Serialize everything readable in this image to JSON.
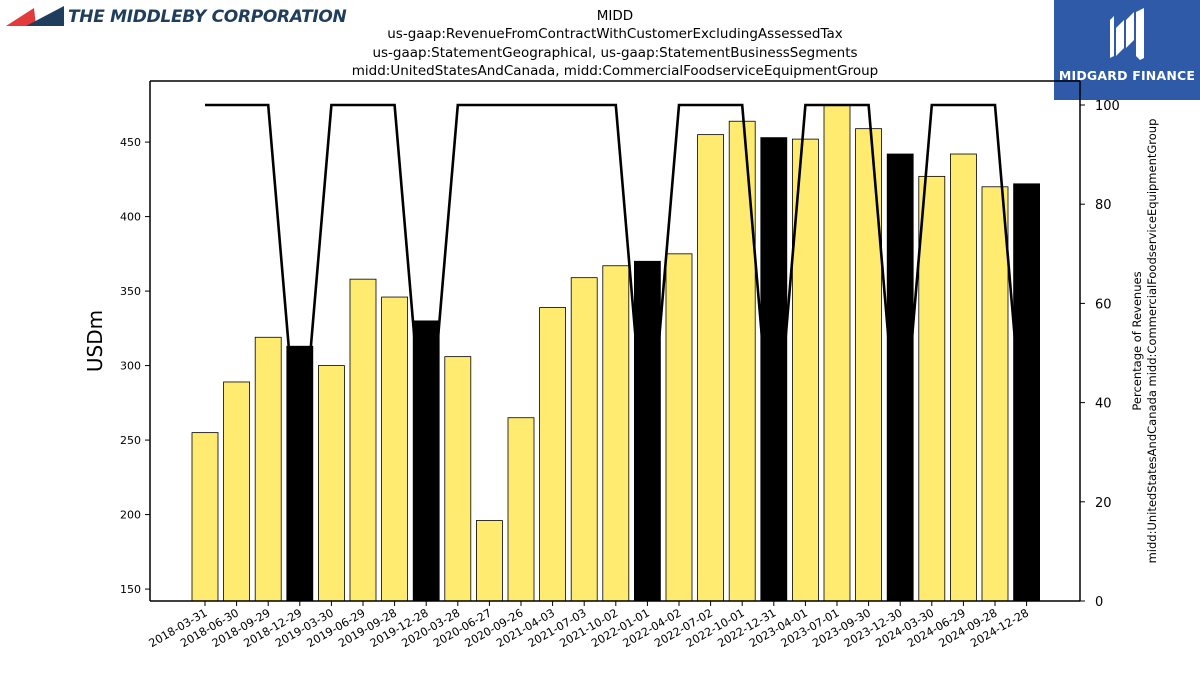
{
  "brand": {
    "left_name": "THE MIDDLEBY CORPORATION",
    "right_name": "MIDGARD FINANCE"
  },
  "title_lines": [
    "MIDD",
    "us-gaap:RevenueFromContractWithCustomerExcludingAssessedTax",
    "us-gaap:StatementGeographical, us-gaap:StatementBusinessSegments",
    "midd:UnitedStatesAndCanada, midd:CommercialFoodserviceEquipmentGroup"
  ],
  "colors": {
    "bar_normal": "#ffeb70",
    "bar_highlight": "#000000",
    "line": "#000000",
    "brand_left_navy": "#1f3d5c",
    "brand_left_red": "#e23b3b",
    "brand_right_bg": "#2f5aa8"
  },
  "chart_data": {
    "type": "bar",
    "ylabel": "USDm",
    "ylabel_right": "Percentage of Revenues\nmidd:UnitedStatesAndCanada midd:CommercialFoodserviceEquipmentGroup",
    "ylim": [
      142,
      491
    ],
    "yticks": [
      150,
      200,
      250,
      300,
      350,
      400,
      450
    ],
    "ylim_right": [
      0,
      100
    ],
    "yticks_right": [
      0,
      20,
      40,
      60,
      80,
      100
    ],
    "categories": [
      "2018-03-31",
      "2018-06-30",
      "2018-09-29",
      "2018-12-29",
      "2019-03-30",
      "2019-06-29",
      "2019-09-28",
      "2019-12-28",
      "2020-03-28",
      "2020-06-27",
      "2020-09-26",
      "2021-04-03",
      "2021-07-03",
      "2021-10-02",
      "2022-01-01",
      "2022-04-02",
      "2022-07-02",
      "2022-10-01",
      "2022-12-31",
      "2023-04-01",
      "2023-07-01",
      "2023-09-30",
      "2023-12-30",
      "2024-03-30",
      "2024-06-29",
      "2024-09-28",
      "2024-12-28"
    ],
    "series": [
      {
        "values": [
          255,
          289,
          319,
          313,
          300,
          358,
          346,
          330,
          306,
          196,
          265,
          339,
          359,
          367,
          370,
          375,
          455,
          464,
          453,
          452,
          475,
          459,
          442,
          427,
          442,
          420,
          422
        ],
        "highlight": [
          false,
          false,
          false,
          true,
          false,
          false,
          false,
          true,
          false,
          false,
          false,
          false,
          false,
          false,
          true,
          false,
          false,
          false,
          true,
          false,
          false,
          false,
          true,
          false,
          false,
          false,
          true
        ]
      },
      {
        "axis": "right",
        "type": "line",
        "values": [
          100,
          100,
          100,
          25,
          100,
          100,
          100,
          25,
          100,
          100,
          100,
          100,
          100,
          100,
          25,
          100,
          100,
          100,
          25,
          100,
          100,
          100,
          25,
          100,
          100,
          100,
          25
        ]
      }
    ],
    "grid": false,
    "legend": "none"
  }
}
